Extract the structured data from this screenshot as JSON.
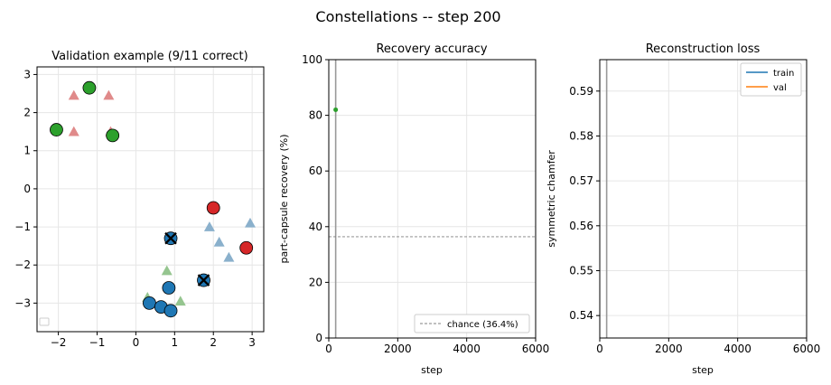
{
  "figure_title": "Constellations -- step 200",
  "chart_data": [
    {
      "type": "scatter",
      "title": "Validation example  (9/11 correct)",
      "xlabel": "",
      "ylabel": "",
      "xlim": [
        -2.55,
        3.3
      ],
      "ylim": [
        -3.75,
        3.2
      ],
      "xticks": [
        -2,
        -1,
        0,
        1,
        2,
        3
      ],
      "yticks": [
        -3,
        -2,
        -1,
        0,
        1,
        2,
        3
      ],
      "grid": true,
      "legend": "bottom-left (empty)",
      "triangles": [
        {
          "x": -1.6,
          "y": 2.45,
          "color": "#e08a8a"
        },
        {
          "x": -0.7,
          "y": 2.45,
          "color": "#e08a8a"
        },
        {
          "x": -1.6,
          "y": 1.5,
          "color": "#e08a8a"
        },
        {
          "x": -0.65,
          "y": 1.5,
          "color": "#e08a8a"
        },
        {
          "x": 1.9,
          "y": -1.0,
          "color": "#8ab0cc"
        },
        {
          "x": 2.95,
          "y": -0.9,
          "color": "#8ab0cc"
        },
        {
          "x": 2.15,
          "y": -1.4,
          "color": "#8ab0cc"
        },
        {
          "x": 2.4,
          "y": -1.8,
          "color": "#8ab0cc"
        },
        {
          "x": 0.8,
          "y": -2.15,
          "color": "#95c58f"
        },
        {
          "x": 0.3,
          "y": -2.85,
          "color": "#95c58f"
        },
        {
          "x": 1.15,
          "y": -2.95,
          "color": "#95c58f"
        }
      ],
      "circles": [
        {
          "x": -1.2,
          "y": 2.65,
          "color": "#2ca02c",
          "cross": false
        },
        {
          "x": -2.05,
          "y": 1.55,
          "color": "#2ca02c",
          "cross": false
        },
        {
          "x": -0.6,
          "y": 1.4,
          "color": "#2ca02c",
          "cross": false
        },
        {
          "x": 2.0,
          "y": -0.5,
          "color": "#d62728",
          "cross": false
        },
        {
          "x": 2.85,
          "y": -1.55,
          "color": "#d62728",
          "cross": false
        },
        {
          "x": 0.9,
          "y": -1.3,
          "color": "#1f77b4",
          "cross": true
        },
        {
          "x": 1.75,
          "y": -2.4,
          "color": "#1f77b4",
          "cross": true
        },
        {
          "x": 0.85,
          "y": -2.6,
          "color": "#1f77b4",
          "cross": false
        },
        {
          "x": 0.35,
          "y": -3.0,
          "color": "#1f77b4",
          "cross": false
        },
        {
          "x": 0.65,
          "y": -3.1,
          "color": "#1f77b4",
          "cross": false
        },
        {
          "x": 0.9,
          "y": -3.2,
          "color": "#1f77b4",
          "cross": false
        }
      ]
    },
    {
      "type": "line",
      "title": "Recovery accuracy",
      "xlabel": "step",
      "ylabel": "part-capsule recovery (%)",
      "xlim": [
        0,
        6000
      ],
      "ylim": [
        0,
        100
      ],
      "xticks": [
        0,
        2000,
        4000,
        6000
      ],
      "yticks": [
        0,
        20,
        40,
        60,
        80,
        100
      ],
      "grid": true,
      "series": [
        {
          "x": [
            200
          ],
          "y": [
            82
          ],
          "color": "#2ca02c"
        }
      ],
      "chance": {
        "y": 36.4,
        "label": "chance (36.4%)"
      },
      "current_step": 200,
      "legend": "lower-right"
    },
    {
      "type": "line",
      "title": "Reconstruction loss",
      "xlabel": "step",
      "ylabel": "symmetric chamfer",
      "xlim": [
        0,
        6000
      ],
      "ylim": [
        0.535,
        0.597
      ],
      "xticks": [
        0,
        2000,
        4000,
        6000
      ],
      "yticks": [
        0.54,
        0.55,
        0.56,
        0.57,
        0.58,
        0.59
      ],
      "grid": true,
      "series": [
        {
          "name": "train",
          "color": "#1f77b4",
          "x": [],
          "y": []
        },
        {
          "name": "val",
          "color": "#ff7f0e",
          "x": [],
          "y": []
        }
      ],
      "current_step": 200,
      "legend": "upper-right"
    }
  ]
}
